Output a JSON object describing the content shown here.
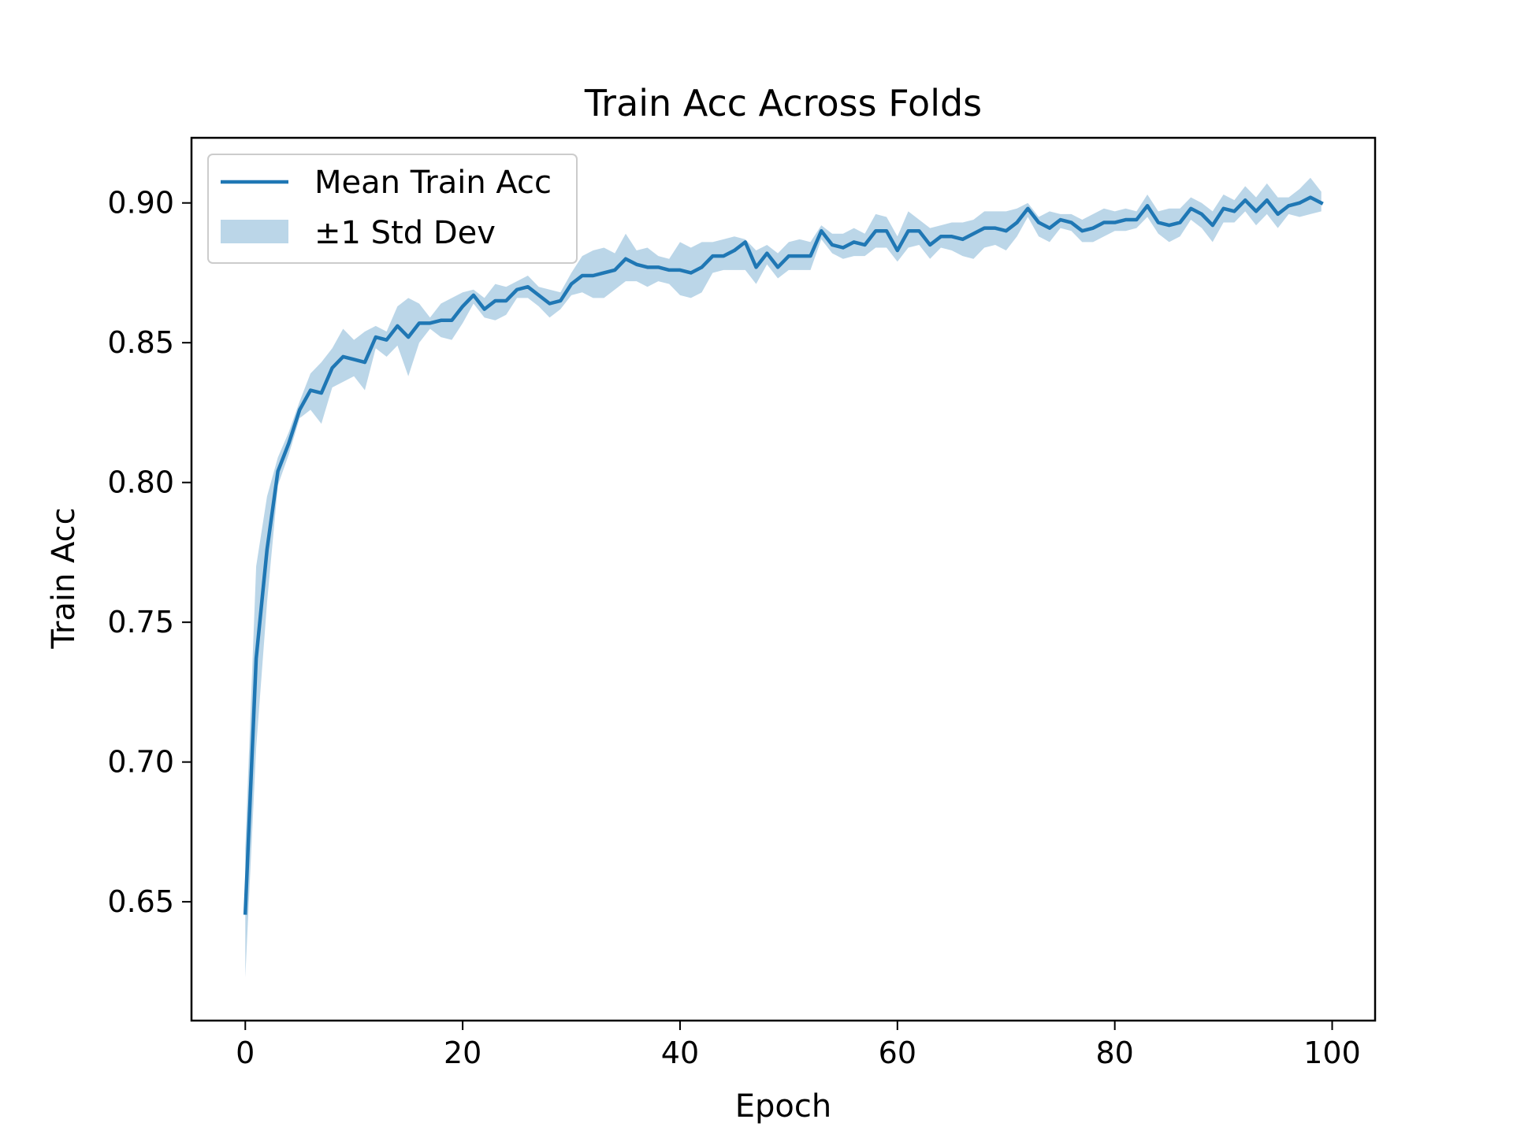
{
  "chart_data": {
    "type": "line",
    "title": "Train Acc Across Folds",
    "xlabel": "Epoch",
    "ylabel": "Train Acc",
    "xlim": [
      -4.95,
      103.95
    ],
    "ylim": [
      0.6075,
      0.9233
    ],
    "xticks": [
      0,
      20,
      40,
      60,
      80,
      100
    ],
    "xtick_labels": [
      "0",
      "20",
      "40",
      "60",
      "80",
      "100"
    ],
    "yticks": [
      0.65,
      0.7,
      0.75,
      0.8,
      0.85,
      0.9
    ],
    "ytick_labels": [
      "0.65",
      "0.70",
      "0.75",
      "0.80",
      "0.85",
      "0.90"
    ],
    "grid": false,
    "legend": {
      "position": "upper-left",
      "entries": [
        {
          "label": "Mean Train Acc",
          "kind": "line"
        },
        {
          "label": "±1 Std Dev",
          "kind": "band"
        }
      ]
    },
    "colors": {
      "line": "#1f77b4",
      "band": "#1f77b4",
      "band_alpha": 0.3
    },
    "series": [
      {
        "name": "Mean Train Acc",
        "x": [
          0,
          1,
          2,
          3,
          4,
          5,
          6,
          7,
          8,
          9,
          10,
          11,
          12,
          13,
          14,
          15,
          16,
          17,
          18,
          19,
          20,
          21,
          22,
          23,
          24,
          25,
          26,
          27,
          28,
          29,
          30,
          31,
          32,
          33,
          34,
          35,
          36,
          37,
          38,
          39,
          40,
          41,
          42,
          43,
          44,
          45,
          46,
          47,
          48,
          49,
          50,
          51,
          52,
          53,
          54,
          55,
          56,
          57,
          58,
          59,
          60,
          61,
          62,
          63,
          64,
          65,
          66,
          67,
          68,
          69,
          70,
          71,
          72,
          73,
          74,
          75,
          76,
          77,
          78,
          79,
          80,
          81,
          82,
          83,
          84,
          85,
          86,
          87,
          88,
          89,
          90,
          91,
          92,
          93,
          94,
          95,
          96,
          97,
          98,
          99
        ],
        "y": [
          0.646,
          0.737,
          0.776,
          0.804,
          0.814,
          0.826,
          0.833,
          0.832,
          0.841,
          0.845,
          0.844,
          0.843,
          0.852,
          0.851,
          0.856,
          0.852,
          0.857,
          0.857,
          0.858,
          0.858,
          0.863,
          0.867,
          0.862,
          0.865,
          0.865,
          0.869,
          0.87,
          0.867,
          0.864,
          0.865,
          0.871,
          0.874,
          0.874,
          0.875,
          0.876,
          0.88,
          0.878,
          0.877,
          0.877,
          0.876,
          0.876,
          0.875,
          0.877,
          0.881,
          0.881,
          0.883,
          0.886,
          0.877,
          0.882,
          0.877,
          0.881,
          0.881,
          0.881,
          0.89,
          0.885,
          0.884,
          0.886,
          0.885,
          0.89,
          0.89,
          0.883,
          0.89,
          0.89,
          0.885,
          0.888,
          0.888,
          0.887,
          0.889,
          0.891,
          0.891,
          0.89,
          0.893,
          0.898,
          0.893,
          0.891,
          0.894,
          0.893,
          0.89,
          0.891,
          0.893,
          0.893,
          0.894,
          0.894,
          0.899,
          0.893,
          0.892,
          0.893,
          0.898,
          0.896,
          0.892,
          0.898,
          0.897,
          0.901,
          0.897,
          0.901,
          0.896,
          0.899,
          0.9,
          0.902,
          0.9
        ]
      },
      {
        "name": "±1 Std Dev",
        "x": [
          0,
          1,
          2,
          3,
          4,
          5,
          6,
          7,
          8,
          9,
          10,
          11,
          12,
          13,
          14,
          15,
          16,
          17,
          18,
          19,
          20,
          21,
          22,
          23,
          24,
          25,
          26,
          27,
          28,
          29,
          30,
          31,
          32,
          33,
          34,
          35,
          36,
          37,
          38,
          39,
          40,
          41,
          42,
          43,
          44,
          45,
          46,
          47,
          48,
          49,
          50,
          51,
          52,
          53,
          54,
          55,
          56,
          57,
          58,
          59,
          60,
          61,
          62,
          63,
          64,
          65,
          66,
          67,
          68,
          69,
          70,
          71,
          72,
          73,
          74,
          75,
          76,
          77,
          78,
          79,
          80,
          81,
          82,
          83,
          84,
          85,
          86,
          87,
          88,
          89,
          90,
          91,
          92,
          93,
          94,
          95,
          96,
          97,
          98,
          99
        ],
        "upper": [
          0.669,
          0.77,
          0.795,
          0.809,
          0.818,
          0.829,
          0.839,
          0.843,
          0.848,
          0.855,
          0.851,
          0.854,
          0.856,
          0.854,
          0.863,
          0.866,
          0.864,
          0.859,
          0.864,
          0.866,
          0.868,
          0.869,
          0.866,
          0.871,
          0.87,
          0.872,
          0.874,
          0.87,
          0.869,
          0.868,
          0.875,
          0.881,
          0.883,
          0.884,
          0.882,
          0.889,
          0.883,
          0.884,
          0.881,
          0.88,
          0.886,
          0.884,
          0.886,
          0.886,
          0.887,
          0.888,
          0.887,
          0.883,
          0.885,
          0.882,
          0.886,
          0.887,
          0.886,
          0.892,
          0.889,
          0.889,
          0.891,
          0.889,
          0.896,
          0.895,
          0.888,
          0.897,
          0.894,
          0.891,
          0.892,
          0.893,
          0.893,
          0.894,
          0.897,
          0.897,
          0.897,
          0.898,
          0.9,
          0.895,
          0.897,
          0.896,
          0.896,
          0.894,
          0.896,
          0.898,
          0.897,
          0.898,
          0.897,
          0.903,
          0.897,
          0.898,
          0.898,
          0.902,
          0.9,
          0.897,
          0.903,
          0.901,
          0.906,
          0.902,
          0.907,
          0.902,
          0.902,
          0.905,
          0.909,
          0.904
        ],
        "lower": [
          0.623,
          0.705,
          0.757,
          0.799,
          0.81,
          0.823,
          0.826,
          0.821,
          0.834,
          0.836,
          0.838,
          0.833,
          0.848,
          0.845,
          0.849,
          0.838,
          0.85,
          0.855,
          0.852,
          0.851,
          0.857,
          0.864,
          0.859,
          0.858,
          0.86,
          0.866,
          0.866,
          0.863,
          0.859,
          0.862,
          0.867,
          0.868,
          0.866,
          0.866,
          0.869,
          0.872,
          0.872,
          0.87,
          0.872,
          0.871,
          0.867,
          0.866,
          0.868,
          0.875,
          0.876,
          0.876,
          0.876,
          0.871,
          0.878,
          0.873,
          0.876,
          0.876,
          0.876,
          0.887,
          0.882,
          0.88,
          0.881,
          0.881,
          0.884,
          0.884,
          0.879,
          0.884,
          0.885,
          0.88,
          0.884,
          0.883,
          0.881,
          0.88,
          0.884,
          0.885,
          0.883,
          0.888,
          0.895,
          0.888,
          0.886,
          0.891,
          0.89,
          0.886,
          0.886,
          0.888,
          0.89,
          0.89,
          0.891,
          0.895,
          0.889,
          0.886,
          0.888,
          0.894,
          0.891,
          0.886,
          0.893,
          0.893,
          0.897,
          0.892,
          0.896,
          0.891,
          0.896,
          0.895,
          0.896,
          0.897
        ]
      }
    ]
  }
}
